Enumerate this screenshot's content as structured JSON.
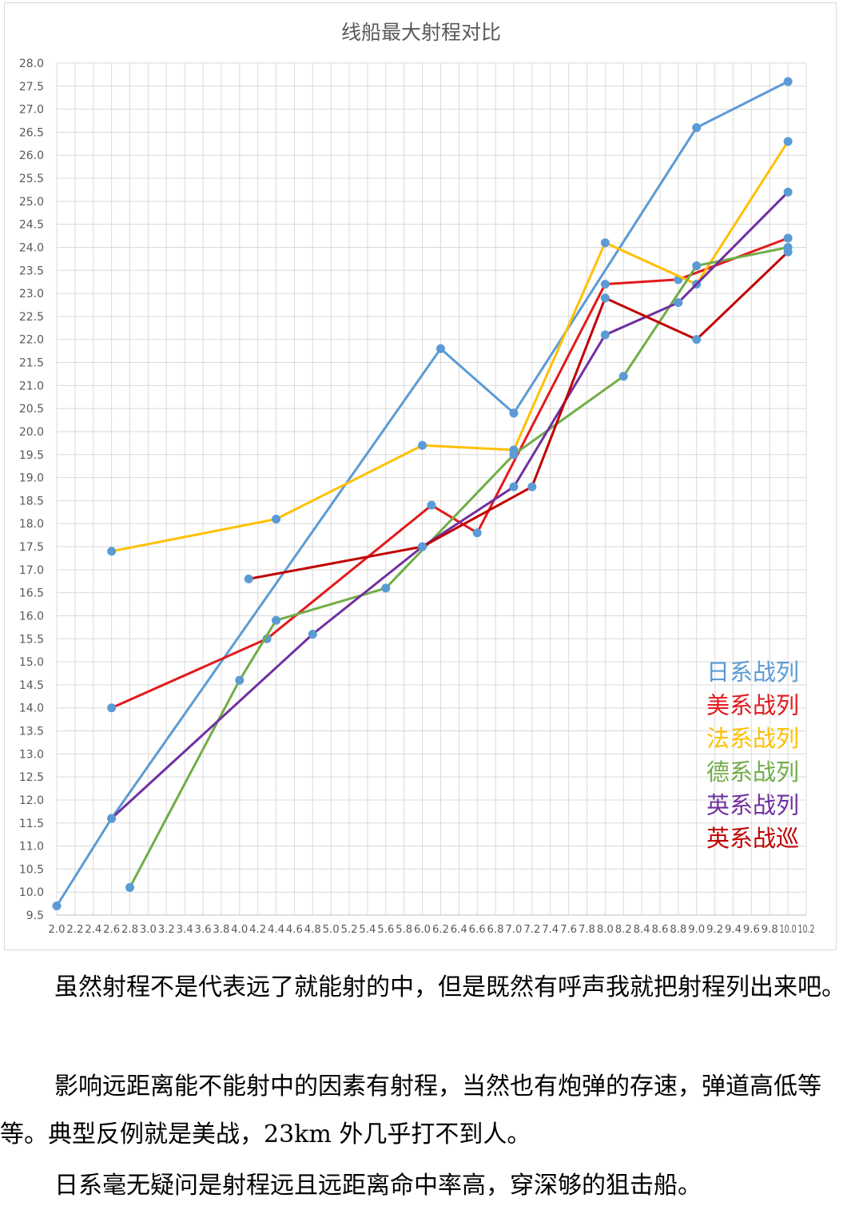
{
  "chart_data": {
    "type": "line",
    "title": "线船最大射程对比",
    "xlabel": "",
    "ylabel": "",
    "xlim": [
      2.0,
      10.2
    ],
    "ylim": [
      9.5,
      28.0
    ],
    "x_tick_step": 0.2,
    "y_tick_step": 0.5,
    "x_tick_labels": [
      "2.0",
      "2.2",
      "2.4",
      "2.6",
      "2.8",
      "3.0",
      "3.2",
      "3.4",
      "3.6",
      "3.8",
      "4.0",
      "4.2",
      "4.4",
      "4.6",
      "4.8",
      "5.0",
      "5.2",
      "5.4",
      "5.6",
      "5.8",
      "6.0",
      "6.2",
      "6.4",
      "6.6",
      "6.8",
      "7.0",
      "7.2",
      "7.4",
      "7.6",
      "7.8",
      "8.0",
      "8.2",
      "8.4",
      "8.6",
      "8.8",
      "9.0",
      "9.2",
      "9.4",
      "9.6",
      "9.8",
      "10.0",
      "10.2"
    ],
    "y_tick_labels": [
      "9.5",
      "10.0",
      "10.5",
      "11.0",
      "11.5",
      "12.0",
      "12.5",
      "13.0",
      "13.5",
      "14.0",
      "14.5",
      "15.0",
      "15.5",
      "16.0",
      "16.5",
      "17.0",
      "17.5",
      "18.0",
      "18.5",
      "19.0",
      "19.5",
      "20.0",
      "20.5",
      "21.0",
      "21.5",
      "22.0",
      "22.5",
      "23.0",
      "23.5",
      "24.0",
      "24.5",
      "25.0",
      "25.5",
      "26.0",
      "26.5",
      "27.0",
      "27.5",
      "28.0"
    ],
    "grid": true,
    "legend_position": "right",
    "marker_color": "#5b9bd5",
    "series": [
      {
        "name": "日系战列",
        "color": "#5b9bd5",
        "points": [
          [
            2.0,
            9.7
          ],
          [
            2.6,
            11.6
          ],
          [
            6.2,
            21.8
          ],
          [
            7.0,
            20.4
          ],
          [
            9.0,
            26.6
          ],
          [
            10.0,
            27.6
          ]
        ]
      },
      {
        "name": "美系战列",
        "color": "#e31a1c",
        "points": [
          [
            2.6,
            14.0
          ],
          [
            4.3,
            15.5
          ],
          [
            6.1,
            18.4
          ],
          [
            6.6,
            17.8
          ],
          [
            8.0,
            23.2
          ],
          [
            8.8,
            23.3
          ],
          [
            10.0,
            24.2
          ]
        ]
      },
      {
        "name": "法系战列",
        "color": "#ffc000",
        "points": [
          [
            2.6,
            17.4
          ],
          [
            4.4,
            18.1
          ],
          [
            6.0,
            19.7
          ],
          [
            7.0,
            19.6
          ],
          [
            8.0,
            24.1
          ],
          [
            9.0,
            23.2
          ],
          [
            10.0,
            26.3
          ]
        ]
      },
      {
        "name": "德系战列",
        "color": "#70ad47",
        "points": [
          [
            2.8,
            10.1
          ],
          [
            4.0,
            14.6
          ],
          [
            4.4,
            15.9
          ],
          [
            5.6,
            16.6
          ],
          [
            7.0,
            19.5
          ],
          [
            8.2,
            21.2
          ],
          [
            9.0,
            23.6
          ],
          [
            10.0,
            24.0
          ]
        ]
      },
      {
        "name": "英系战列",
        "color": "#7030a0",
        "points": [
          [
            2.6,
            11.6
          ],
          [
            4.8,
            15.6
          ],
          [
            6.0,
            17.5
          ],
          [
            7.0,
            18.8
          ],
          [
            8.0,
            22.1
          ],
          [
            8.8,
            22.8
          ],
          [
            10.0,
            25.2
          ]
        ]
      },
      {
        "name": "英系战巡",
        "color": "#c00000",
        "points": [
          [
            4.1,
            16.8
          ],
          [
            6.0,
            17.5
          ],
          [
            7.2,
            18.8
          ],
          [
            8.0,
            22.9
          ],
          [
            9.0,
            22.0
          ],
          [
            10.0,
            23.9
          ]
        ]
      }
    ]
  },
  "paragraphs": [
    "虽然射程不是代表远了就能射的中，但是既然有呼声我就把射程列出来吧。",
    "影响远距离能不能射中的因素有射程，当然也有炮弹的存速，弹道高低等等。典型反例就是美战，23km 外几乎打不到人。",
    "日系毫无疑问是射程远且远距离命中率高，穿深够的狙击船。"
  ]
}
